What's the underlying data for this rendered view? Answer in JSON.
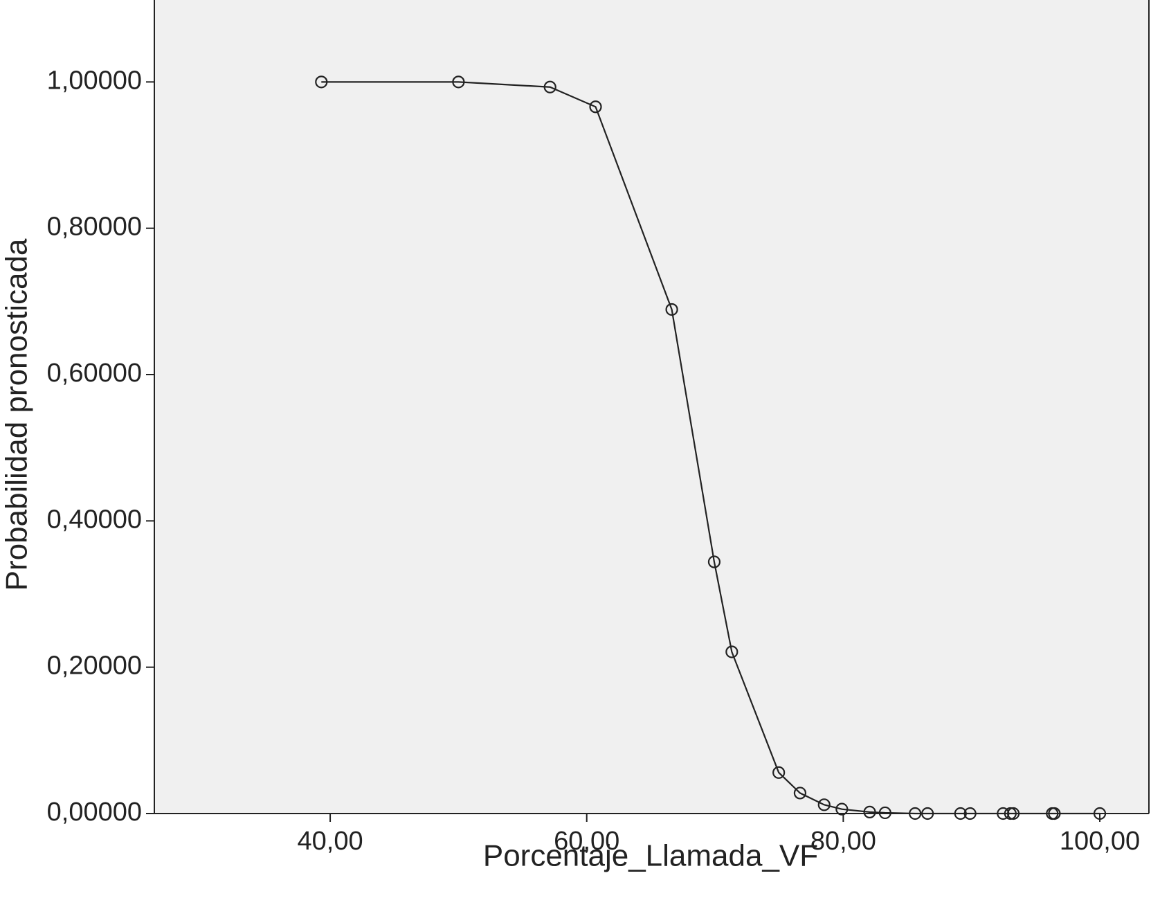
{
  "chart_data": {
    "type": "line",
    "x_label": "Porcentaje_Llamada_VF",
    "y_label": "Probabilidad pronosticada",
    "x": [
      39.31,
      50.0,
      57.14,
      60.69,
      66.63,
      69.94,
      71.31,
      74.97,
      76.63,
      78.51,
      79.89,
      82.06,
      83.26,
      85.6,
      86.57,
      89.14,
      89.89,
      92.46,
      93.03,
      93.26,
      96.29,
      96.46,
      100.0
    ],
    "series": [
      {
        "color": "#222222",
        "markers": true,
        "values": [
          1.0,
          1.0,
          0.993,
          0.966,
          0.689,
          0.344,
          0.221,
          0.056,
          0.028,
          0.012,
          0.006,
          0.002,
          0.001,
          0,
          0,
          0,
          0,
          0,
          0,
          0,
          0,
          0,
          0
        ]
      }
    ],
    "xlim": [
      26.29,
      103.83
    ],
    "ylim": [
      0,
      1.112
    ],
    "xticks": [
      {
        "value": 40,
        "label": "40,00"
      },
      {
        "value": 60,
        "label": "60,00"
      },
      {
        "value": 80,
        "label": "80,00"
      },
      {
        "value": 100,
        "label": "100,00"
      }
    ],
    "yticks": [
      {
        "value": 0,
        "label": "0,00000"
      },
      {
        "value": 0.2,
        "label": "0,20000"
      },
      {
        "value": 0.4,
        "label": "0,40000"
      },
      {
        "value": 0.6,
        "label": "0,60000"
      },
      {
        "value": 0.8,
        "label": "0,80000"
      },
      {
        "value": 1.0,
        "label": "1,00000"
      }
    ],
    "background": "#f0f0f0"
  }
}
